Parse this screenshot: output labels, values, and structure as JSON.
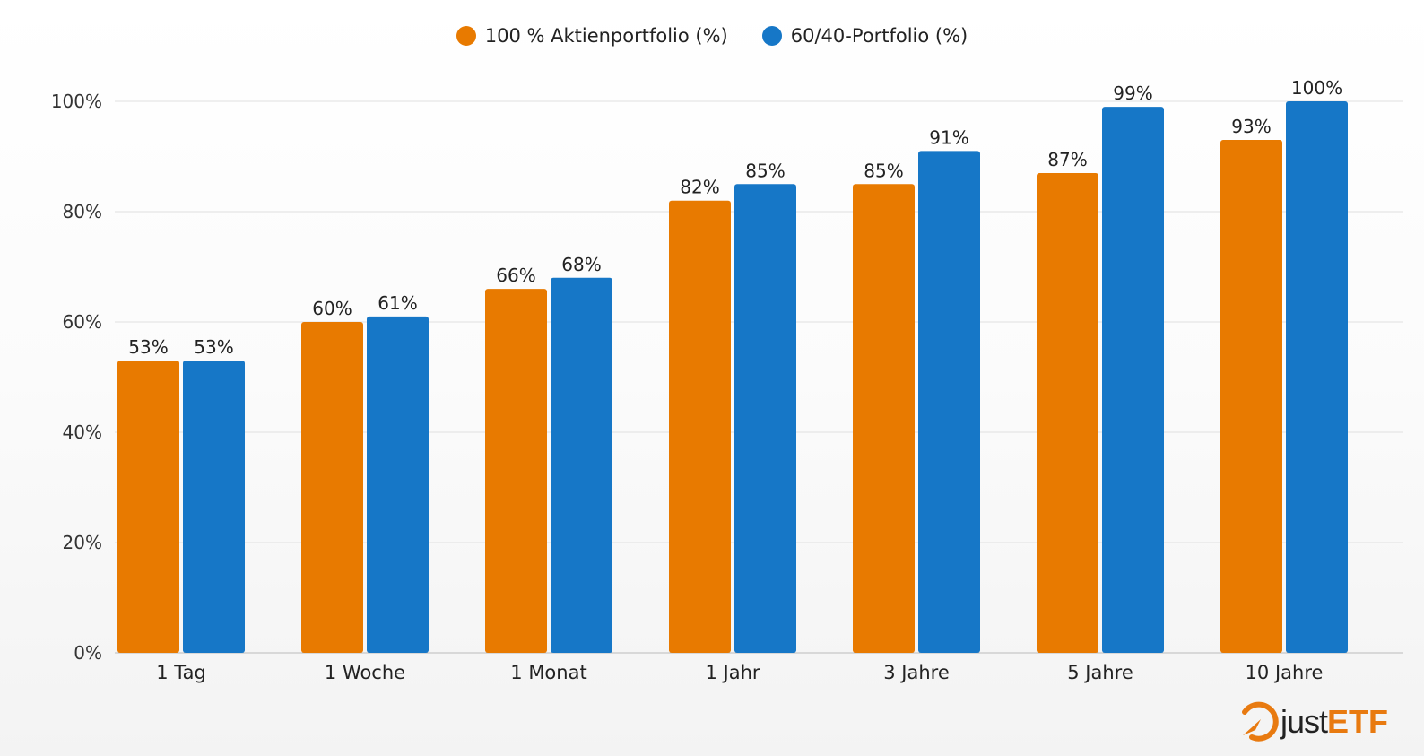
{
  "chart_data": {
    "type": "bar",
    "categories": [
      "1 Tag",
      "1 Woche",
      "1 Monat",
      "1 Jahr",
      "3 Jahre",
      "5 Jahre",
      "10 Jahre"
    ],
    "series": [
      {
        "name": "100 % Aktienportfolio (%)",
        "color": "#e87a00",
        "values": [
          53,
          60,
          66,
          82,
          85,
          87,
          93
        ],
        "labels": [
          "53%",
          "60%",
          "66%",
          "82%",
          "85%",
          "87%",
          "93%"
        ]
      },
      {
        "name": "60/40-Portfolio (%)",
        "color": "#1677c7",
        "values": [
          53,
          61,
          68,
          85,
          91,
          99,
          100
        ],
        "labels": [
          "53%",
          "61%",
          "68%",
          "85%",
          "91%",
          "99%",
          "100%"
        ]
      }
    ],
    "ylim": [
      0,
      100
    ],
    "yticks": [
      0,
      20,
      40,
      60,
      80,
      100
    ],
    "ytick_labels": [
      "0%",
      "20%",
      "40%",
      "60%",
      "80%",
      "100%"
    ],
    "grid": true,
    "legend": "top-center",
    "title": "",
    "xlabel": "",
    "ylabel": ""
  },
  "logo": {
    "text_just": "just",
    "text_etf": "ETF"
  }
}
